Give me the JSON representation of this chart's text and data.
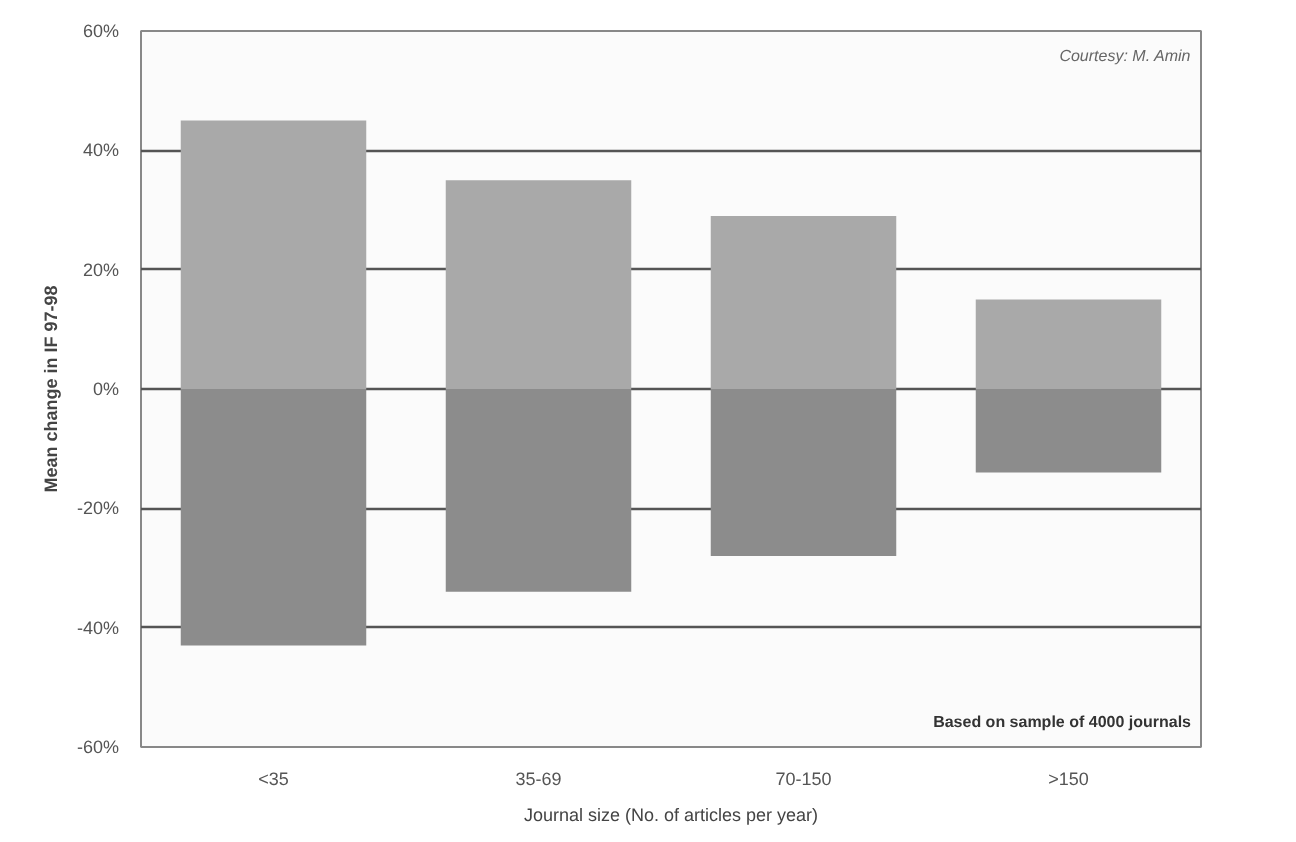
{
  "chart_data": {
    "type": "bar",
    "xlabel": "Journal size (No. of articles per year)",
    "ylabel": "Mean change in IF 97-98",
    "categories": [
      "<35",
      "35-69",
      "70-150",
      ">150"
    ],
    "series": [
      {
        "color": "#a9a9a9",
        "values": [
          45,
          35,
          29,
          15
        ]
      },
      {
        "color": "#8c8c8c",
        "values": [
          -43,
          -34,
          -28,
          -14
        ]
      }
    ],
    "stacked": true,
    "ylim": [
      -60,
      60
    ],
    "yticks": [
      {
        "value": -60,
        "label": "-60%"
      },
      {
        "value": -40,
        "label": "-40%"
      },
      {
        "value": -20,
        "label": "-20%"
      },
      {
        "value": 0,
        "label": "0%"
      },
      {
        "value": 20,
        "label": "20%"
      },
      {
        "value": 40,
        "label": "40%"
      },
      {
        "value": 60,
        "label": "60%"
      }
    ],
    "grid": "y",
    "annotations": [
      "Courtesy: M. Amin",
      "Based on sample of 4000 journals"
    ]
  }
}
